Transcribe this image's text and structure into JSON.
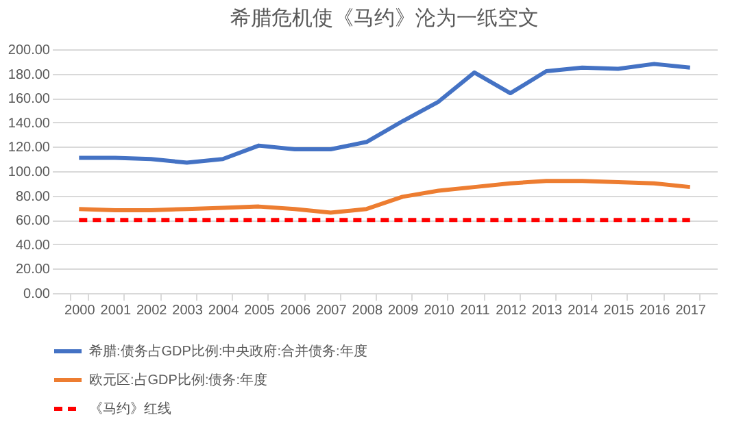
{
  "chart_data": {
    "type": "line",
    "title": "希腊危机使《马约》沦为一纸空文",
    "categories": [
      "2000",
      "2001",
      "2002",
      "2003",
      "2004",
      "2005",
      "2006",
      "2007",
      "2008",
      "2009",
      "2010",
      "2011",
      "2012",
      "2013",
      "2014",
      "2015",
      "2016",
      "2017"
    ],
    "series": [
      {
        "name": "希腊:债务占GDP比例:中央政府:合并债务:年度",
        "color": "#4472c4",
        "line_style": "solid",
        "values": [
          111,
          111,
          110,
          107,
          110,
          121,
          118,
          118,
          124,
          141,
          157,
          181,
          164,
          182,
          185,
          184,
          188,
          185
        ]
      },
      {
        "name": "欧元区:占GDP比例:债务:年度",
        "color": "#ed7d31",
        "line_style": "solid",
        "values": [
          69,
          68,
          68,
          69,
          70,
          71,
          69,
          66,
          69,
          79,
          84,
          87,
          90,
          92,
          92,
          91,
          90,
          87
        ]
      },
      {
        "name": "《马约》红线",
        "color": "#ff0000",
        "line_style": "dashed",
        "values": [
          60,
          60,
          60,
          60,
          60,
          60,
          60,
          60,
          60,
          60,
          60,
          60,
          60,
          60,
          60,
          60,
          60,
          60
        ]
      }
    ],
    "ylim": [
      0,
      200
    ],
    "yticks": [
      {
        "value": 0,
        "label": "0.00"
      },
      {
        "value": 20,
        "label": "20.00"
      },
      {
        "value": 40,
        "label": "40.00"
      },
      {
        "value": 60,
        "label": "60.00"
      },
      {
        "value": 80,
        "label": "80.00"
      },
      {
        "value": 100,
        "label": "100.00"
      },
      {
        "value": 120,
        "label": "120.00"
      },
      {
        "value": 140,
        "label": "140.00"
      },
      {
        "value": 160,
        "label": "160.00"
      },
      {
        "value": 180,
        "label": "180.00"
      },
      {
        "value": 200,
        "label": "200.00"
      }
    ],
    "grid": "y",
    "legend": "bottom",
    "marker": "none"
  }
}
